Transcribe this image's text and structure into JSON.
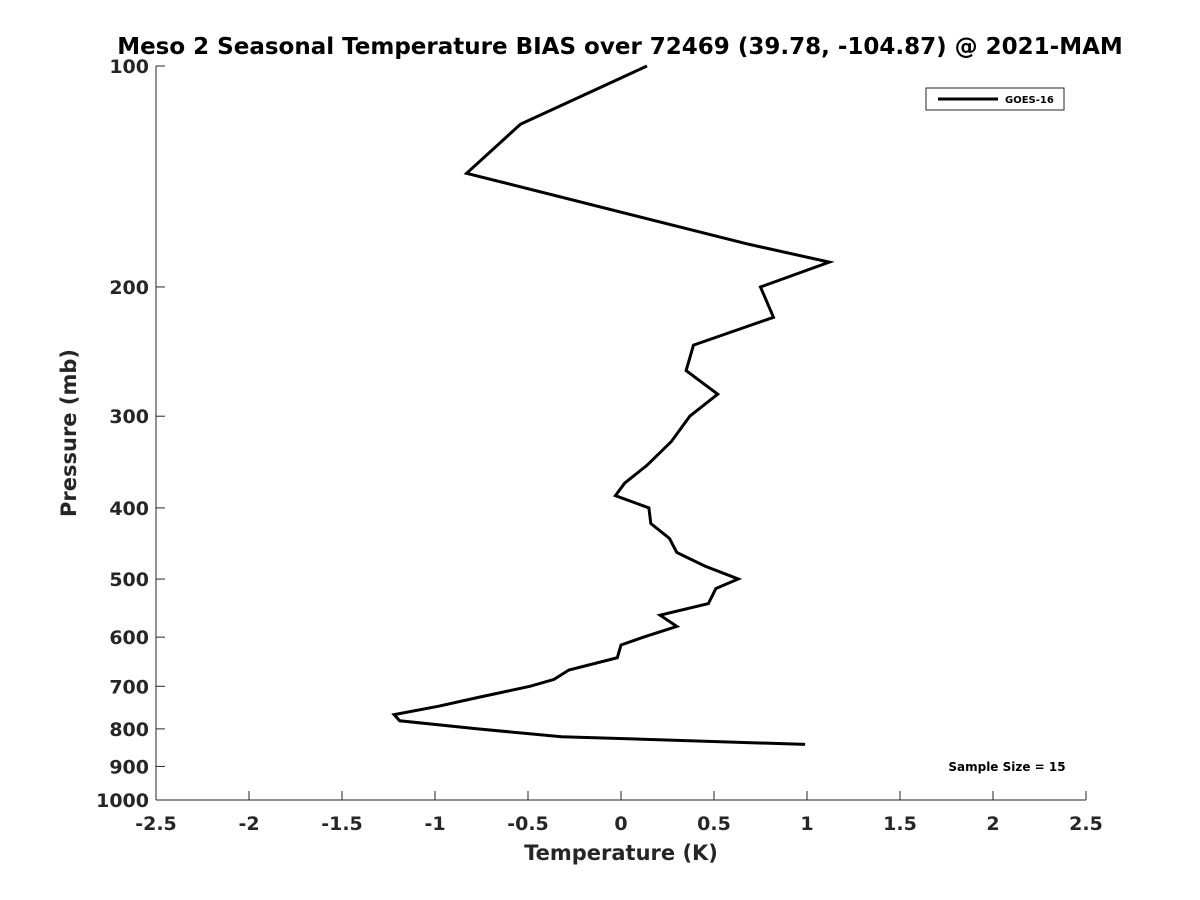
{
  "chart_data": {
    "type": "line",
    "title": "Meso 2 Seasonal Temperature BIAS over 72469 (39.78, -104.87) @ 2021-MAM",
    "xlabel": "Temperature (K)",
    "ylabel": "Pressure (mb)",
    "xlim": [
      -2.5,
      2.5
    ],
    "ylim": [
      1000,
      100
    ],
    "y_scale": "log",
    "y_reversed": true,
    "x_ticks": [
      "-2.5",
      "-2",
      "-1.5",
      "-1",
      "-0.5",
      "0",
      "0.5",
      "1",
      "1.5",
      "2",
      "2.5"
    ],
    "x_tick_values": [
      -2.5,
      -2,
      -1.5,
      -1,
      -0.5,
      0,
      0.5,
      1,
      1.5,
      2,
      2.5
    ],
    "y_ticks": [
      "100",
      "200",
      "300",
      "400",
      "500",
      "600",
      "700",
      "800",
      "900",
      "1000"
    ],
    "y_tick_values": [
      100,
      200,
      300,
      400,
      500,
      600,
      700,
      800,
      900,
      1000
    ],
    "grid": false,
    "legend_position": "top-right",
    "annotation": "Sample Size = 15",
    "line_color": "#000000",
    "series": [
      {
        "name": "GOES-16",
        "x": [
          0.14,
          -0.54,
          -0.83,
          0.69,
          1.12,
          0.75,
          0.82,
          0.39,
          0.35,
          0.52,
          0.37,
          0.27,
          0.14,
          0.02,
          -0.03,
          0.15,
          0.16,
          0.26,
          0.3,
          0.45,
          0.63,
          0.51,
          0.47,
          0.21,
          0.3,
          0.12,
          0.0,
          -0.02,
          -0.28,
          -0.36,
          -0.49,
          -0.77,
          -0.98,
          -1.22,
          -1.19,
          -0.77,
          -0.32,
          0.99
        ],
        "y": [
          100,
          120,
          140,
          175,
          185,
          200,
          220,
          240,
          260,
          280,
          300,
          325,
          350,
          370,
          385,
          400,
          420,
          440,
          460,
          480,
          500,
          515,
          540,
          560,
          580,
          600,
          615,
          640,
          665,
          685,
          700,
          725,
          745,
          765,
          780,
          800,
          820,
          840
        ]
      }
    ]
  }
}
